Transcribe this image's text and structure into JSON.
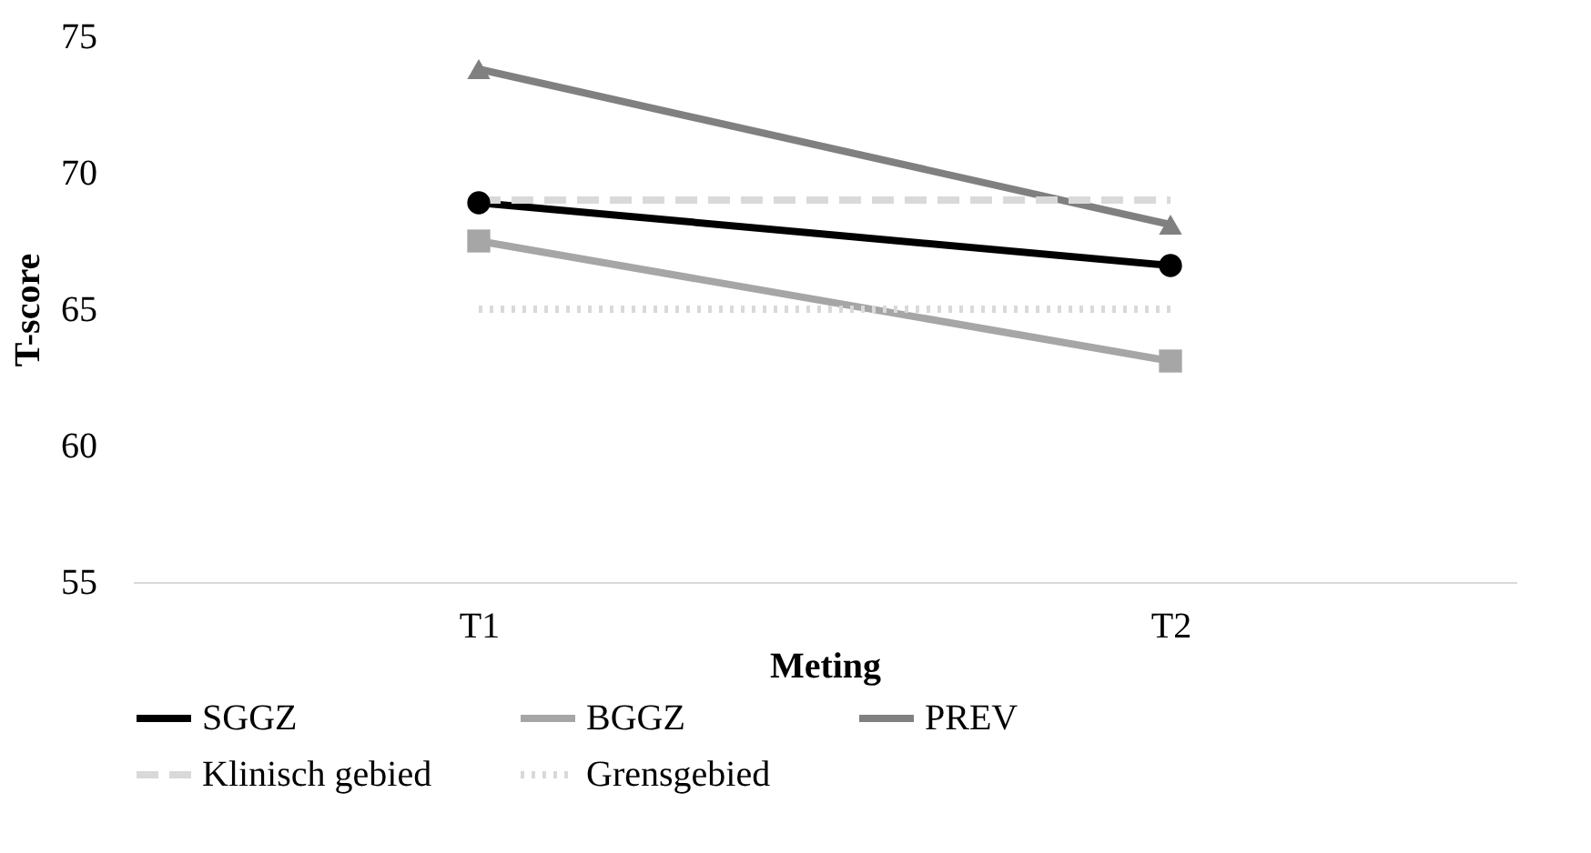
{
  "chart_data": {
    "type": "line",
    "xlabel": "Meting",
    "ylabel": "T-score",
    "categories": [
      "T1",
      "T2"
    ],
    "series": [
      {
        "name": "SGGZ",
        "color": "#000000",
        "values": [
          68.9,
          66.6
        ],
        "marker": "circle",
        "line_style": "solid"
      },
      {
        "name": "BGGZ",
        "color": "#a6a6a6",
        "values": [
          67.5,
          63.1
        ],
        "marker": "square",
        "line_style": "solid"
      },
      {
        "name": "PREV",
        "color": "#808080",
        "values": [
          73.8,
          68.1
        ],
        "marker": "triangle",
        "line_style": "solid"
      },
      {
        "name": "Klinisch gebied",
        "color": "#d9d9d9",
        "values": [
          69,
          69
        ],
        "marker": "none",
        "line_style": "dashed"
      },
      {
        "name": "Grensgebied",
        "color": "#d9d9d9",
        "values": [
          65,
          65
        ],
        "marker": "none",
        "line_style": "dotted"
      }
    ],
    "ylim": [
      55,
      75
    ],
    "yticks": [
      55,
      60,
      65,
      70,
      75
    ],
    "grid": false,
    "legend": "bottom"
  }
}
